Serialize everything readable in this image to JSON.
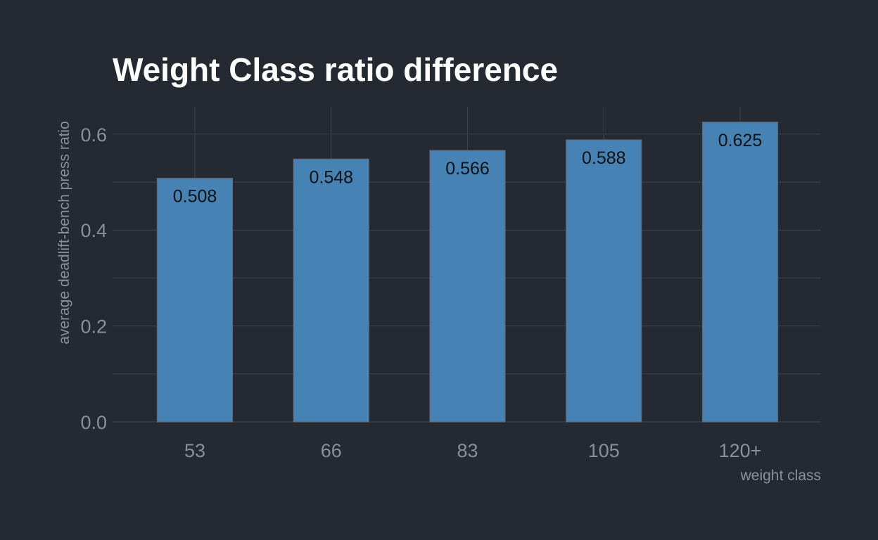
{
  "chart_data": {
    "type": "bar",
    "title": "Weight Class ratio difference",
    "xlabel": "weight class",
    "ylabel": "average deadlift-bench press ratio",
    "categories": [
      "53",
      "66",
      "83",
      "105",
      "120+"
    ],
    "values": [
      0.508,
      0.548,
      0.566,
      0.588,
      0.625
    ],
    "data_labels": [
      "0.508",
      "0.548",
      "0.566",
      "0.588",
      "0.625"
    ],
    "y_ticks": [
      "0.0",
      "0.2",
      "0.4",
      "0.6"
    ],
    "y_tick_values": [
      0,
      0.2,
      0.4,
      0.6
    ],
    "ylim": [
      0,
      0.655
    ],
    "grid": true,
    "legend": "none",
    "colors": {
      "background": "#252932",
      "bar_fill": "#4682b4",
      "bar_stroke": "#5f6b7a",
      "grid": "#3d424c",
      "tick_text": "#8c8f96",
      "title_text": "#ffffff",
      "data_label_text": "#111111"
    }
  }
}
